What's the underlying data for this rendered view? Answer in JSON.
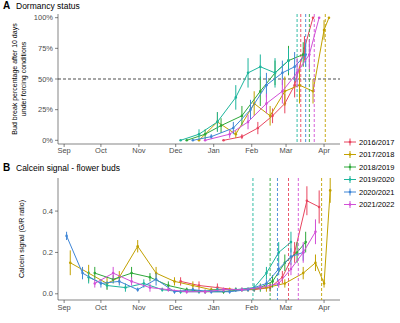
{
  "chart_data": [
    {
      "type": "line",
      "panel_label": "A",
      "title": "Dormancy status",
      "ylabel": [
        "Bud break percentage after 10 days",
        "under forcing conditions"
      ],
      "xlim": [
        -5,
        225
      ],
      "xticks": [
        {
          "value": 0,
          "label": "Sep"
        },
        {
          "value": 30,
          "label": "Oct"
        },
        {
          "value": 61,
          "label": "Nov"
        },
        {
          "value": 91,
          "label": "Dec"
        },
        {
          "value": 122,
          "label": "Jan"
        },
        {
          "value": 153,
          "label": "Feb"
        },
        {
          "value": 181,
          "label": "Mar"
        },
        {
          "value": 212,
          "label": "Apr"
        }
      ],
      "ylim": [
        -3,
        103
      ],
      "yticks": [
        {
          "value": 0,
          "label": "0%"
        },
        {
          "value": 25,
          "label": "25%"
        },
        {
          "value": 50,
          "label": "50%"
        },
        {
          "value": 75,
          "label": "75%"
        },
        {
          "value": 100,
          "label": "100%"
        }
      ],
      "threshold": 50,
      "grid": false,
      "legend": "right",
      "marker": "circle",
      "series": [
        {
          "name": "2016/2017",
          "color": "#e8455f",
          "release": 193,
          "x": [
            130,
            145,
            158,
            170,
            180,
            188,
            196,
            203
          ],
          "values": [
            0,
            3,
            10,
            20,
            30,
            45,
            75,
            100
          ],
          "errors": [
            0,
            2,
            5,
            6,
            8,
            10,
            10,
            0
          ]
        },
        {
          "name": "2017/2018",
          "color": "#c2a100",
          "release": 213,
          "x": [
            110,
            125,
            140,
            155,
            168,
            180,
            192,
            203,
            212,
            216
          ],
          "values": [
            0,
            15,
            5,
            30,
            20,
            40,
            45,
            40,
            90,
            100
          ],
          "errors": [
            0,
            8,
            3,
            10,
            8,
            12,
            15,
            10,
            8,
            0
          ]
        },
        {
          "name": "2018/2019",
          "color": "#2ea83a",
          "release": 200,
          "x": [
            100,
            115,
            128,
            145,
            160,
            172,
            183,
            195
          ],
          "values": [
            0,
            5,
            12,
            20,
            40,
            55,
            65,
            70
          ],
          "errors": [
            0,
            4,
            6,
            8,
            12,
            10,
            12,
            10
          ]
        },
        {
          "name": "2019/2020",
          "color": "#1db59c",
          "release": 190,
          "x": [
            95,
            110,
            125,
            140,
            150,
            160,
            172,
            183
          ],
          "values": [
            0,
            5,
            15,
            35,
            55,
            60,
            55,
            65
          ],
          "errors": [
            0,
            4,
            8,
            10,
            12,
            10,
            12,
            10
          ]
        },
        {
          "name": "2020/2021",
          "color": "#3f86d6",
          "release": 197,
          "x": [
            105,
            120,
            138,
            152,
            165,
            178,
            188,
            197
          ],
          "values": [
            0,
            3,
            10,
            25,
            45,
            55,
            60,
            70
          ],
          "errors": [
            0,
            2,
            5,
            8,
            10,
            10,
            12,
            10
          ]
        },
        {
          "name": "2021/2022",
          "color": "#d24fd6",
          "release": 204,
          "x": [
            115,
            135,
            150,
            165,
            178,
            190,
            200,
            208
          ],
          "values": [
            0,
            5,
            15,
            30,
            40,
            55,
            70,
            100
          ],
          "errors": [
            0,
            3,
            6,
            8,
            10,
            12,
            12,
            0
          ]
        }
      ]
    },
    {
      "type": "line",
      "panel_label": "B",
      "title": "Calcein signal - flower buds",
      "ylabel": [
        "Calcein signal (G/R ratio)"
      ],
      "xlim": [
        -5,
        225
      ],
      "xticks": [
        {
          "value": 0,
          "label": "Sep"
        },
        {
          "value": 30,
          "label": "Oct"
        },
        {
          "value": 61,
          "label": "Nov"
        },
        {
          "value": 91,
          "label": "Dec"
        },
        {
          "value": 122,
          "label": "Jan"
        },
        {
          "value": 153,
          "label": "Feb"
        },
        {
          "value": 181,
          "label": "Mar"
        },
        {
          "value": 212,
          "label": "Apr"
        }
      ],
      "ylim": [
        -0.03,
        0.56
      ],
      "yticks": [
        {
          "value": 0,
          "label": "0.0"
        },
        0.2,
        0.4
      ],
      "grid": false,
      "marker": "circle",
      "series": [
        {
          "name": "2016/2017",
          "color": "#e8455f",
          "release": 183,
          "x": [
            95,
            110,
            125,
            140,
            155,
            168,
            178,
            188,
            198,
            208
          ],
          "values": [
            0.06,
            0.04,
            0.03,
            0.02,
            0.02,
            0.03,
            0.08,
            0.2,
            0.45,
            0.42
          ],
          "errors": [
            0.02,
            0.02,
            0.02,
            0.01,
            0.01,
            0.02,
            0.03,
            0.05,
            0.07,
            0.08
          ]
        },
        {
          "name": "2017/2018",
          "color": "#c2a100",
          "release": 210,
          "x": [
            5,
            20,
            35,
            45,
            60,
            75,
            90,
            105,
            120,
            135,
            150,
            165,
            180,
            195,
            205,
            212,
            217
          ],
          "values": [
            0.15,
            0.1,
            0.05,
            0.08,
            0.23,
            0.1,
            0.06,
            0.04,
            0.02,
            0.02,
            0.02,
            0.03,
            0.05,
            0.1,
            0.15,
            0.05,
            0.5
          ],
          "errors": [
            0.06,
            0.04,
            0.03,
            0.03,
            0.03,
            0.03,
            0.02,
            0.02,
            0.01,
            0.01,
            0.01,
            0.02,
            0.02,
            0.03,
            0.04,
            0.02,
            0.06
          ]
        },
        {
          "name": "2018/2019",
          "color": "#2ea83a",
          "release": 168,
          "x": [
            25,
            40,
            55,
            70,
            85,
            100,
            115,
            130,
            145,
            160,
            170,
            180,
            190,
            197
          ],
          "values": [
            0.1,
            0.07,
            0.1,
            0.08,
            0.04,
            0.02,
            0.01,
            0.01,
            0.02,
            0.03,
            0.06,
            0.15,
            0.2,
            0.25
          ],
          "errors": [
            0.03,
            0.02,
            0.03,
            0.02,
            0.02,
            0.01,
            0.01,
            0.01,
            0.01,
            0.02,
            0.03,
            0.04,
            0.05,
            0.05
          ]
        },
        {
          "name": "2019/2020",
          "color": "#1db59c",
          "release": 154,
          "x": [
            20,
            35,
            50,
            65,
            80,
            95,
            110,
            125,
            140,
            155,
            165,
            175,
            185
          ],
          "values": [
            0.08,
            0.04,
            0.03,
            0.05,
            0.02,
            0.01,
            0.01,
            0.02,
            0.02,
            0.03,
            0.1,
            0.2,
            0.25
          ],
          "errors": [
            0.03,
            0.02,
            0.02,
            0.02,
            0.01,
            0.01,
            0.01,
            0.01,
            0.01,
            0.02,
            0.03,
            0.05,
            0.05
          ]
        },
        {
          "name": "2020/2021",
          "color": "#3f86d6",
          "release": 174,
          "x": [
            2,
            15,
            30,
            45,
            60,
            75,
            90,
            105,
            120,
            135,
            150,
            165,
            175,
            185,
            195
          ],
          "values": [
            0.28,
            0.1,
            0.05,
            0.06,
            0.02,
            0.07,
            0.01,
            0.02,
            0.01,
            0.01,
            0.02,
            0.05,
            0.12,
            0.18,
            0.2
          ],
          "errors": [
            0.02,
            0.03,
            0.02,
            0.02,
            0.01,
            0.03,
            0.01,
            0.01,
            0.01,
            0.01,
            0.01,
            0.02,
            0.03,
            0.04,
            0.04
          ]
        },
        {
          "name": "2021/2022",
          "color": "#d24fd6",
          "release": 191,
          "x": [
            25,
            40,
            55,
            70,
            85,
            100,
            115,
            130,
            145,
            160,
            175,
            185,
            195,
            205
          ],
          "values": [
            0.05,
            0.1,
            0.06,
            0.03,
            0.02,
            0.01,
            0.01,
            0.02,
            0.02,
            0.03,
            0.05,
            0.12,
            0.2,
            0.3
          ],
          "errors": [
            0.02,
            0.03,
            0.02,
            0.02,
            0.01,
            0.01,
            0.01,
            0.01,
            0.01,
            0.01,
            0.02,
            0.03,
            0.05,
            0.06
          ]
        }
      ]
    }
  ]
}
